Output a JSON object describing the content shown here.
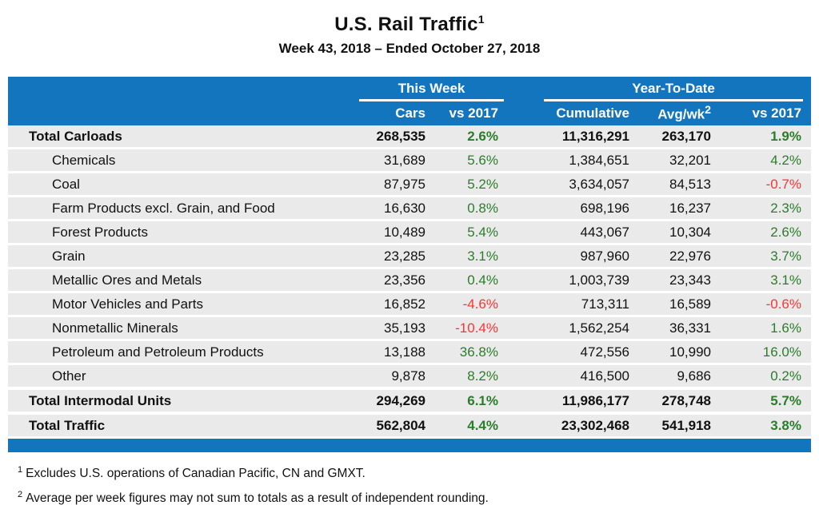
{
  "page": {
    "title": "U.S. Rail Traffic",
    "title_footnote_ref": "1",
    "subtitle": "Week 43, 2018 – Ended October 27, 2018"
  },
  "table": {
    "group_headers": {
      "this_week": "This Week",
      "year_to_date": "Year-To-Date"
    },
    "column_headers": {
      "cars": "Cars",
      "week_vs_2017": "vs 2017",
      "cumulative": "Cumulative",
      "avg_per_week": "Avg/wk",
      "avg_per_week_footnote_ref": "2",
      "ytd_vs_2017": "vs 2017"
    },
    "rows": [
      {
        "label": "Total Carloads",
        "total": true,
        "cars": "268,535",
        "week_vs_2017": "2.6%",
        "cumulative": "11,316,291",
        "avg_per_week": "263,170",
        "ytd_vs_2017": "1.9%"
      },
      {
        "label": "Chemicals",
        "total": false,
        "cars": "31,689",
        "week_vs_2017": "5.6%",
        "cumulative": "1,384,651",
        "avg_per_week": "32,201",
        "ytd_vs_2017": "4.2%"
      },
      {
        "label": "Coal",
        "total": false,
        "cars": "87,975",
        "week_vs_2017": "5.2%",
        "cumulative": "3,634,057",
        "avg_per_week": "84,513",
        "ytd_vs_2017": "-0.7%"
      },
      {
        "label": "Farm Products excl. Grain, and Food",
        "total": false,
        "cars": "16,630",
        "week_vs_2017": "0.8%",
        "cumulative": "698,196",
        "avg_per_week": "16,237",
        "ytd_vs_2017": "2.3%"
      },
      {
        "label": "Forest Products",
        "total": false,
        "cars": "10,489",
        "week_vs_2017": "5.4%",
        "cumulative": "443,067",
        "avg_per_week": "10,304",
        "ytd_vs_2017": "2.6%"
      },
      {
        "label": "Grain",
        "total": false,
        "cars": "23,285",
        "week_vs_2017": "3.1%",
        "cumulative": "987,960",
        "avg_per_week": "22,976",
        "ytd_vs_2017": "3.7%"
      },
      {
        "label": "Metallic Ores and Metals",
        "total": false,
        "cars": "23,356",
        "week_vs_2017": "0.4%",
        "cumulative": "1,003,739",
        "avg_per_week": "23,343",
        "ytd_vs_2017": "3.1%"
      },
      {
        "label": "Motor Vehicles and Parts",
        "total": false,
        "cars": "16,852",
        "week_vs_2017": "-4.6%",
        "cumulative": "713,311",
        "avg_per_week": "16,589",
        "ytd_vs_2017": "-0.6%"
      },
      {
        "label": "Nonmetallic Minerals",
        "total": false,
        "cars": "35,193",
        "week_vs_2017": "-10.4%",
        "cumulative": "1,562,254",
        "avg_per_week": "36,331",
        "ytd_vs_2017": "1.6%"
      },
      {
        "label": "Petroleum and Petroleum Products",
        "total": false,
        "cars": "13,188",
        "week_vs_2017": "36.8%",
        "cumulative": "472,556",
        "avg_per_week": "10,990",
        "ytd_vs_2017": "16.0%"
      },
      {
        "label": "Other",
        "total": false,
        "cars": "9,878",
        "week_vs_2017": "8.2%",
        "cumulative": "416,500",
        "avg_per_week": "9,686",
        "ytd_vs_2017": "0.2%"
      },
      {
        "label": "Total Intermodal Units",
        "total": true,
        "cars": "294,269",
        "week_vs_2017": "6.1%",
        "cumulative": "11,986,177",
        "avg_per_week": "278,748",
        "ytd_vs_2017": "5.7%"
      },
      {
        "label": "Total Traffic",
        "total": true,
        "cars": "562,804",
        "week_vs_2017": "4.4%",
        "cumulative": "23,302,468",
        "avg_per_week": "541,918",
        "ytd_vs_2017": "3.8%"
      }
    ]
  },
  "footnotes": [
    {
      "ref": "1",
      "text": "Excludes U.S. operations of Canadian Pacific, CN and GMXT."
    },
    {
      "ref": "2",
      "text": "Average per week figures may not sum to totals as a result of independent rounding."
    }
  ],
  "colors": {
    "header_blue": "#1375BD",
    "row_gray": "#EAEAEA",
    "positive_green": "#2B7D2B",
    "negative_red": "#FF3333"
  }
}
